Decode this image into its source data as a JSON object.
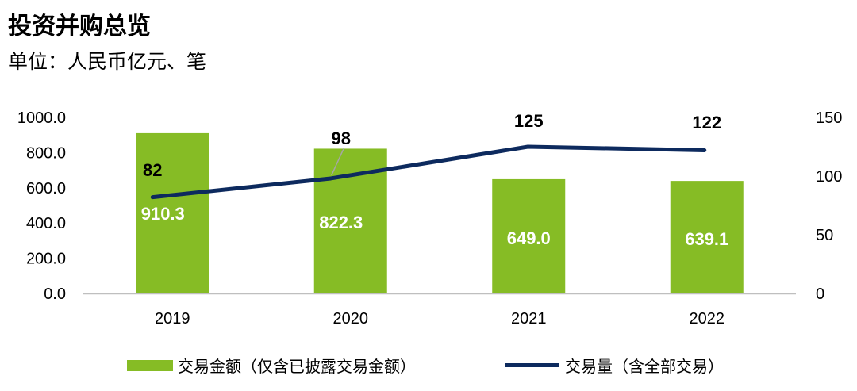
{
  "title": "投资并购总览",
  "subtitle": "单位：人民币亿元、笔",
  "colors": {
    "bar": "#86BC25",
    "line": "#0D2A5E",
    "axis": "#BFBFBF"
  },
  "chart_data": {
    "type": "bar",
    "categories": [
      "2019",
      "2020",
      "2021",
      "2022"
    ],
    "series": [
      {
        "name": "交易金额（仅含已披露交易金额）",
        "type": "bar",
        "axis": "left",
        "values": [
          910.3,
          822.3,
          649.0,
          639.1
        ],
        "labels": [
          "910.3",
          "822.3",
          "649.0",
          "639.1"
        ]
      },
      {
        "name": "交易量（含全部交易）",
        "type": "line",
        "axis": "right",
        "values": [
          82,
          98,
          125,
          122
        ],
        "labels": [
          "82",
          "98",
          "125",
          "122"
        ]
      }
    ],
    "y_left": {
      "ylim": [
        0,
        1000
      ],
      "ticks": [
        "0.0",
        "200.0",
        "400.0",
        "600.0",
        "800.0",
        "1000.0"
      ]
    },
    "y_right": {
      "ylim": [
        0,
        150
      ],
      "ticks": [
        "0",
        "50",
        "100",
        "150"
      ]
    },
    "grid": false,
    "legend_position": "bottom"
  }
}
